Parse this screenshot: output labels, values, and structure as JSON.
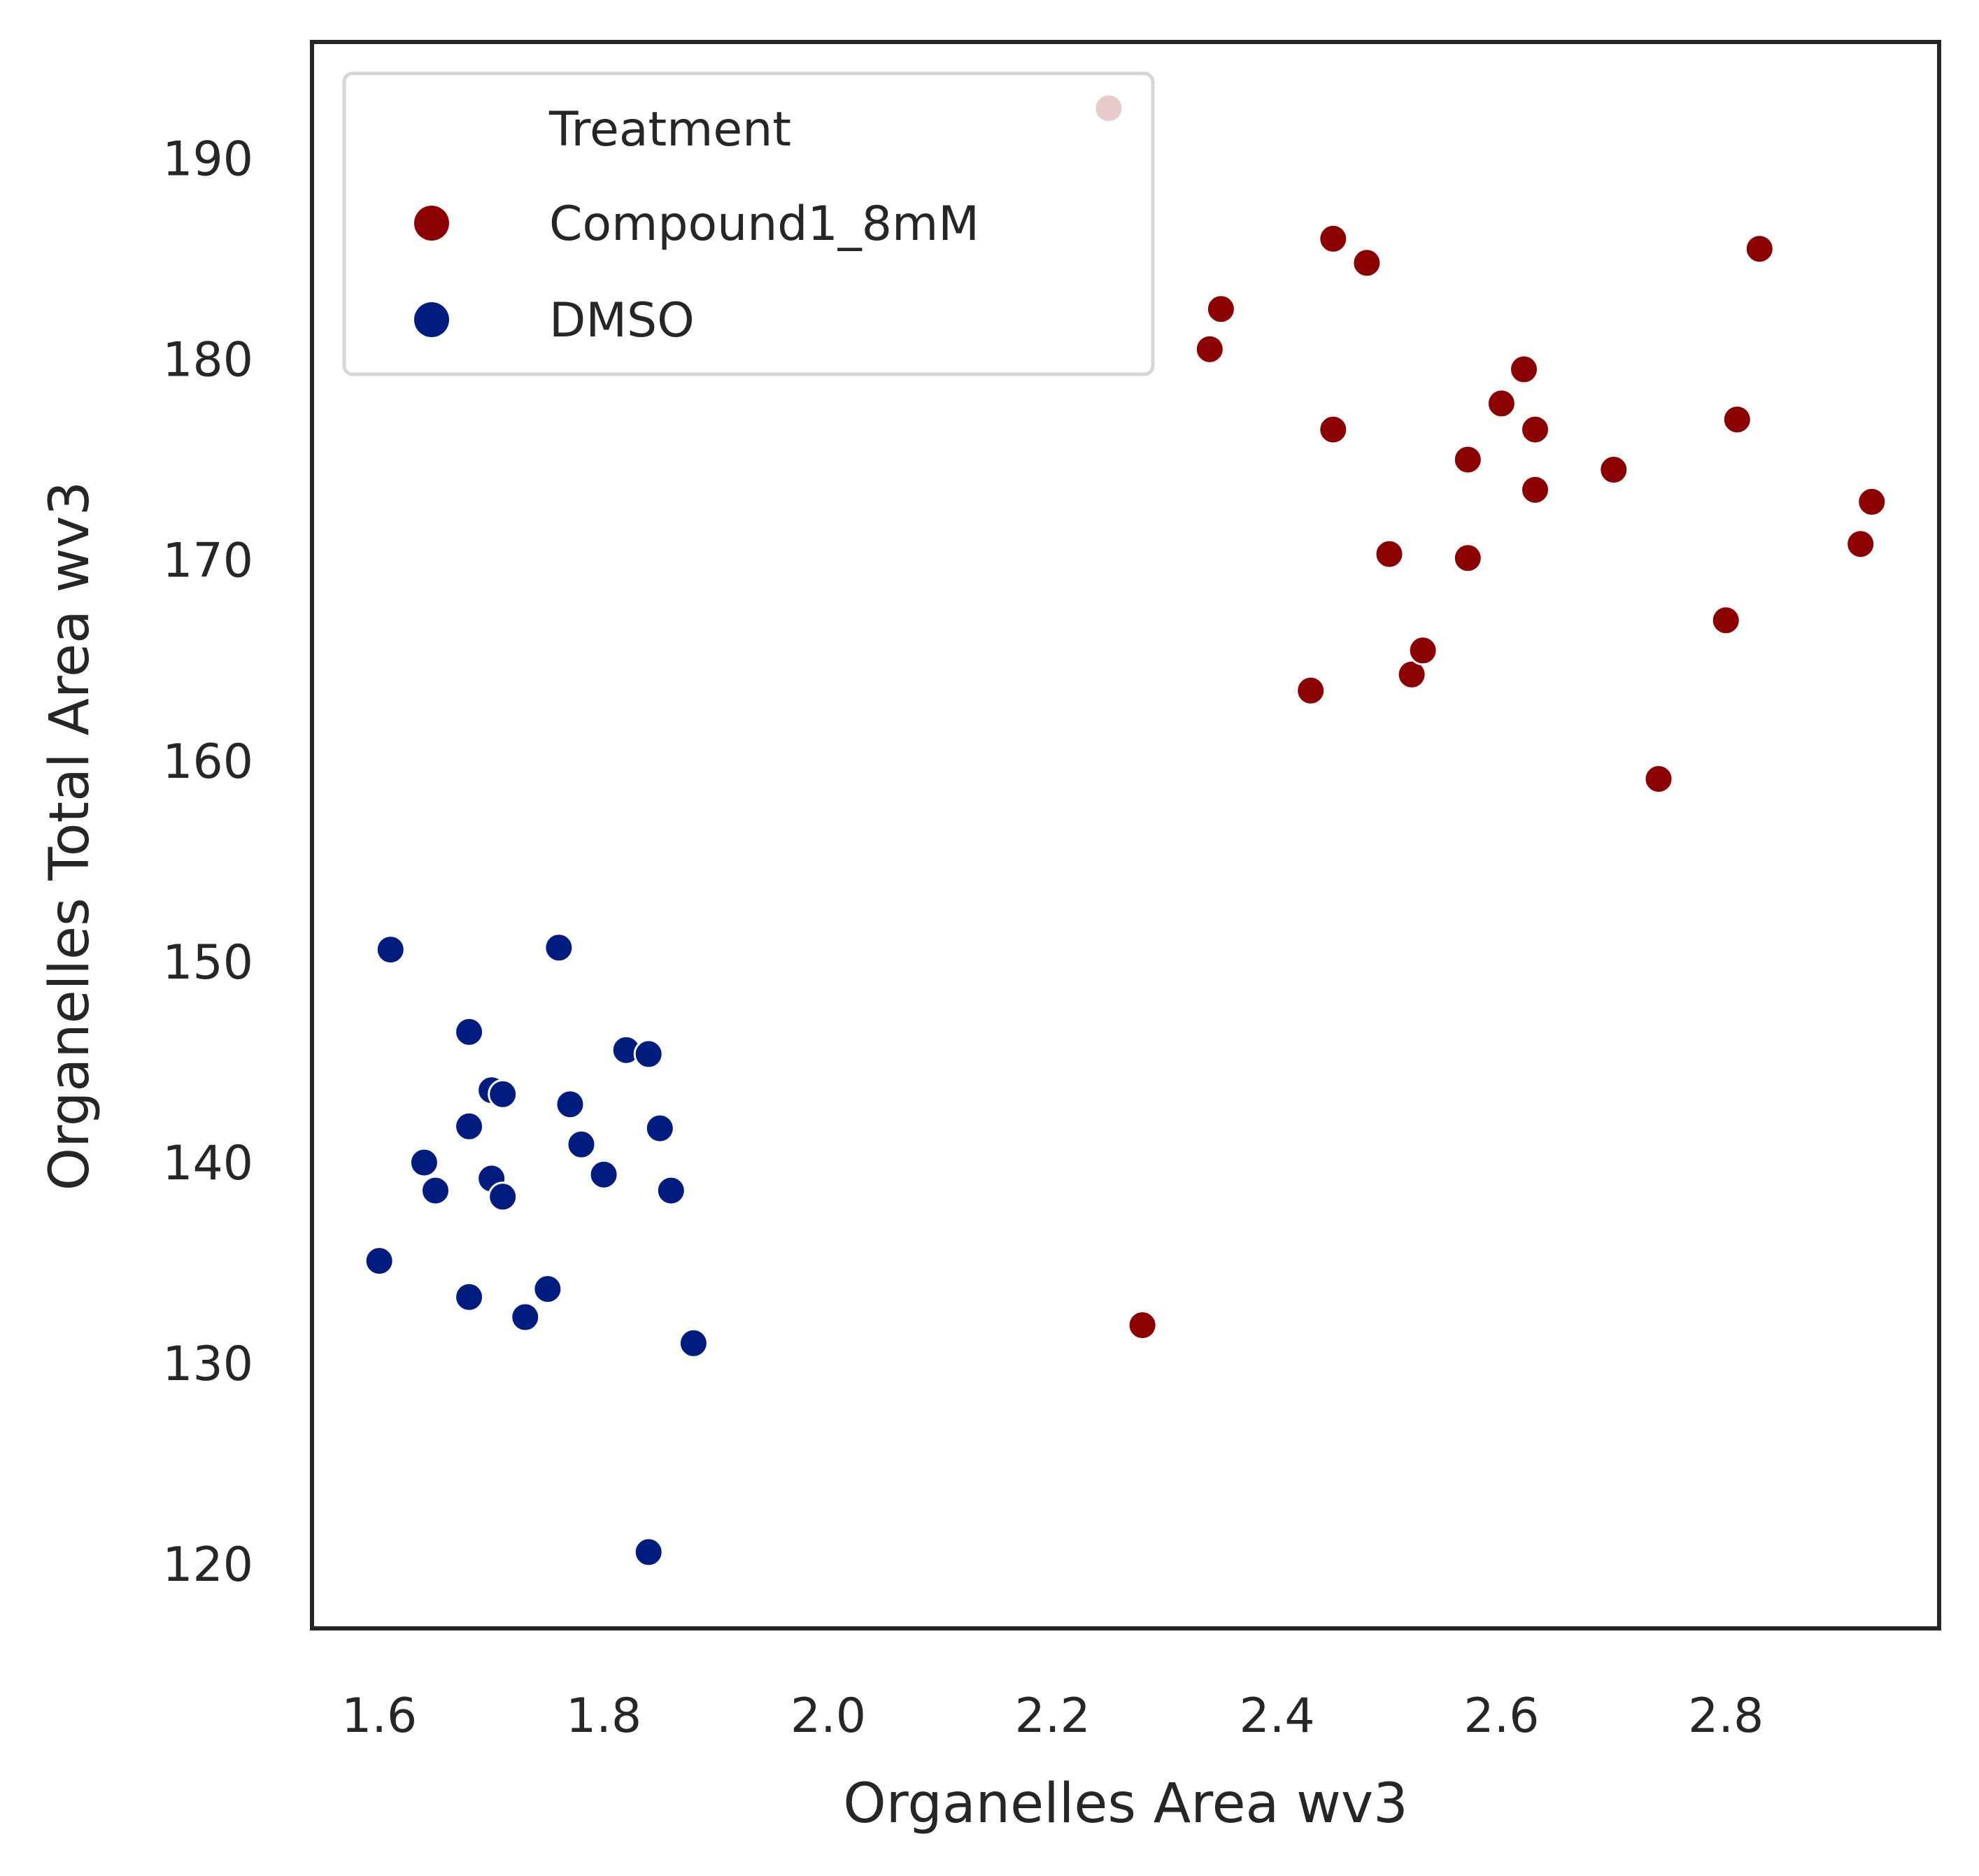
{
  "chart_data": {
    "type": "scatter",
    "xlabel": "Organelles Area  wv3",
    "ylabel": "Organelles Total Area wv3",
    "xlim": [
      1.54,
      2.99
    ],
    "ylim": [
      116.8,
      195.8
    ],
    "xticks": [
      "1.6",
      "1.8",
      "2.0",
      "2.2",
      "2.4",
      "2.6",
      "2.8"
    ],
    "yticks": [
      "120",
      "130",
      "140",
      "150",
      "160",
      "170",
      "180",
      "190"
    ],
    "grid": false,
    "legend": {
      "title": "Treatment",
      "placement": "upper-left"
    },
    "series": [
      {
        "name": "Compound1_8mM",
        "color": "#8b0000",
        "points": [
          [
            2.25,
            192.5
          ],
          [
            2.34,
            180.5
          ],
          [
            2.35,
            182.5
          ],
          [
            2.43,
            163.5
          ],
          [
            2.45,
            186.0
          ],
          [
            2.45,
            176.5
          ],
          [
            2.48,
            184.8
          ],
          [
            2.5,
            170.3
          ],
          [
            2.52,
            164.3
          ],
          [
            2.53,
            165.5
          ],
          [
            2.57,
            170.1
          ],
          [
            2.57,
            175.0
          ],
          [
            2.6,
            177.8
          ],
          [
            2.62,
            179.5
          ],
          [
            2.63,
            176.5
          ],
          [
            2.63,
            173.5
          ],
          [
            2.7,
            174.5
          ],
          [
            2.74,
            159.1
          ],
          [
            2.8,
            167.0
          ],
          [
            2.81,
            177.0
          ],
          [
            2.83,
            185.5
          ],
          [
            2.92,
            170.8
          ],
          [
            2.93,
            172.9
          ],
          [
            2.28,
            131.9
          ]
        ]
      },
      {
        "name": "DMSO",
        "color": "#001c7f",
        "points": [
          [
            1.61,
            150.6
          ],
          [
            1.6,
            135.1
          ],
          [
            1.64,
            140.0
          ],
          [
            1.65,
            138.6
          ],
          [
            1.68,
            146.5
          ],
          [
            1.68,
            141.8
          ],
          [
            1.68,
            133.3
          ],
          [
            1.7,
            143.6
          ],
          [
            1.7,
            139.2
          ],
          [
            1.71,
            138.3
          ],
          [
            1.71,
            143.4
          ],
          [
            1.73,
            132.3
          ],
          [
            1.75,
            133.7
          ],
          [
            1.76,
            150.7
          ],
          [
            1.77,
            142.9
          ],
          [
            1.78,
            140.9
          ],
          [
            1.8,
            139.4
          ],
          [
            1.82,
            145.6
          ],
          [
            1.84,
            145.4
          ],
          [
            1.85,
            141.7
          ],
          [
            1.86,
            138.6
          ],
          [
            1.88,
            131.0
          ],
          [
            1.84,
            120.6
          ]
        ]
      }
    ]
  }
}
